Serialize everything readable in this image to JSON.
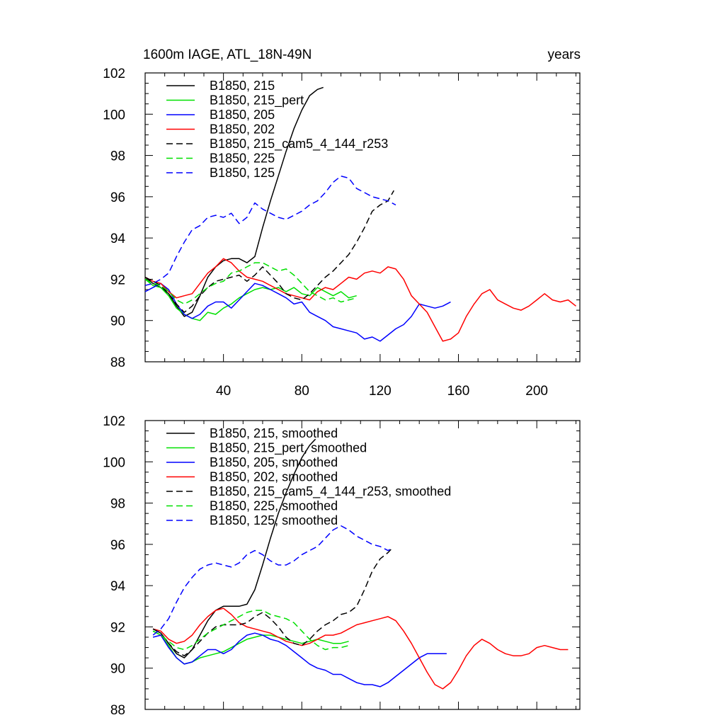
{
  "chart_data": [
    {
      "type": "line",
      "title_left": "1600m IAGE, ATL_18N-49N",
      "title_right": "years",
      "xlim": [
        0,
        222
      ],
      "ylim": [
        88,
        102
      ],
      "xticks": [
        40,
        80,
        120,
        160,
        200
      ],
      "yticks": [
        88,
        90,
        92,
        94,
        96,
        98,
        100,
        102
      ],
      "show_x_tick_labels": true,
      "legend_position": "top-left",
      "series": [
        {
          "name": "B1850, 215",
          "color": "#000000",
          "dash": "solid",
          "x": [
            0,
            4,
            8,
            12,
            16,
            20,
            24,
            28,
            32,
            36,
            40,
            44,
            48,
            52,
            56,
            60,
            64,
            68,
            72,
            76,
            80,
            84,
            88,
            91
          ],
          "y": [
            92.1,
            91.8,
            91.6,
            91.3,
            90.7,
            90.2,
            90.4,
            91.2,
            92.1,
            92.6,
            92.9,
            93.0,
            93.0,
            92.8,
            93.1,
            94.5,
            95.8,
            97.0,
            98.2,
            99.3,
            100.2,
            100.9,
            101.2,
            101.3
          ]
        },
        {
          "name": "B1850, 215_pert",
          "color": "#00e000",
          "dash": "solid",
          "x": [
            0,
            4,
            8,
            12,
            16,
            20,
            24,
            28,
            32,
            36,
            40,
            44,
            48,
            52,
            56,
            60,
            64,
            68,
            72,
            76,
            80,
            84,
            88,
            92,
            96,
            100,
            104,
            108
          ],
          "y": [
            92.0,
            91.7,
            91.6,
            91.2,
            90.6,
            90.3,
            90.1,
            90.0,
            90.4,
            90.3,
            90.6,
            90.8,
            91.1,
            91.3,
            91.5,
            91.6,
            91.5,
            91.6,
            91.4,
            91.6,
            91.3,
            91.2,
            91.6,
            91.4,
            91.2,
            91.4,
            91.1,
            91.2
          ]
        },
        {
          "name": "B1850, 205",
          "color": "#0000ff",
          "dash": "solid",
          "x": [
            0,
            4,
            8,
            12,
            16,
            20,
            24,
            28,
            32,
            36,
            40,
            44,
            48,
            52,
            56,
            60,
            64,
            68,
            72,
            76,
            80,
            84,
            88,
            92,
            96,
            100,
            104,
            108,
            112,
            116,
            120,
            124,
            128,
            132,
            136,
            140,
            144,
            148,
            152,
            156
          ],
          "y": [
            91.4,
            91.6,
            91.8,
            91.5,
            90.8,
            90.3,
            90.1,
            90.3,
            90.7,
            90.9,
            90.9,
            90.6,
            91.0,
            91.4,
            91.8,
            91.7,
            91.5,
            91.3,
            91.1,
            90.8,
            90.9,
            90.4,
            90.2,
            90.0,
            89.7,
            89.6,
            89.5,
            89.4,
            89.1,
            89.2,
            89.0,
            89.3,
            89.6,
            89.8,
            90.2,
            90.8,
            90.7,
            90.6,
            90.7,
            90.9
          ]
        },
        {
          "name": "B1850, 202",
          "color": "#ff0000",
          "dash": "solid",
          "x": [
            0,
            4,
            8,
            12,
            16,
            20,
            24,
            28,
            32,
            36,
            40,
            44,
            48,
            52,
            56,
            60,
            64,
            68,
            72,
            76,
            80,
            84,
            88,
            92,
            96,
            100,
            104,
            108,
            112,
            116,
            120,
            124,
            128,
            132,
            136,
            140,
            144,
            148,
            152,
            156,
            160,
            164,
            168,
            172,
            176,
            180,
            184,
            188,
            192,
            196,
            200,
            204,
            208,
            212,
            216,
            220
          ],
          "y": [
            92.1,
            91.9,
            91.8,
            91.4,
            91.1,
            91.2,
            91.3,
            91.8,
            92.3,
            92.6,
            93.0,
            92.8,
            92.4,
            92.1,
            92.0,
            91.9,
            91.7,
            91.5,
            91.3,
            91.2,
            91.1,
            91.0,
            91.4,
            91.6,
            91.5,
            91.8,
            92.1,
            92.0,
            92.3,
            92.4,
            92.3,
            92.6,
            92.5,
            92.0,
            91.2,
            90.8,
            90.4,
            89.7,
            89.0,
            89.1,
            89.4,
            90.2,
            90.8,
            91.3,
            91.5,
            91.0,
            90.8,
            90.6,
            90.5,
            90.7,
            91.0,
            91.3,
            91.0,
            90.9,
            91.0,
            90.7
          ]
        },
        {
          "name": "B1850, 215_cam5_4_144_r253",
          "color": "#000000",
          "dash": "dashed",
          "x": [
            0,
            4,
            8,
            12,
            16,
            20,
            24,
            28,
            32,
            36,
            40,
            44,
            48,
            52,
            56,
            60,
            64,
            68,
            72,
            76,
            80,
            84,
            88,
            92,
            96,
            100,
            104,
            108,
            112,
            116,
            120,
            124,
            127
          ],
          "y": [
            92.1,
            91.9,
            91.7,
            91.3,
            90.8,
            90.4,
            90.7,
            91.2,
            91.6,
            91.9,
            92.0,
            92.1,
            92.2,
            91.9,
            92.2,
            92.6,
            92.2,
            91.8,
            91.3,
            91.1,
            91.0,
            91.3,
            91.7,
            92.1,
            92.4,
            92.8,
            93.2,
            93.8,
            94.5,
            95.3,
            95.6,
            95.8,
            96.3
          ]
        },
        {
          "name": "B1850, 225",
          "color": "#00e000",
          "dash": "dashed",
          "x": [
            0,
            4,
            8,
            12,
            16,
            20,
            24,
            28,
            32,
            36,
            40,
            44,
            48,
            52,
            56,
            60,
            64,
            68,
            72,
            76,
            80,
            84,
            88,
            92,
            96,
            100,
            104,
            108
          ],
          "y": [
            92.0,
            91.8,
            91.7,
            91.4,
            91.0,
            90.8,
            91.0,
            91.3,
            91.6,
            91.8,
            91.9,
            92.3,
            92.4,
            92.6,
            92.8,
            92.8,
            92.6,
            92.4,
            92.5,
            92.2,
            91.8,
            91.4,
            91.2,
            91.0,
            91.1,
            90.9,
            91.0,
            91.1
          ]
        },
        {
          "name": "B1850, 125",
          "color": "#0000ff",
          "dash": "dashed",
          "x": [
            0,
            4,
            8,
            12,
            16,
            20,
            24,
            28,
            32,
            36,
            40,
            44,
            48,
            52,
            56,
            60,
            64,
            68,
            72,
            76,
            80,
            84,
            88,
            92,
            96,
            100,
            104,
            108,
            112,
            116,
            120,
            124,
            128
          ],
          "y": [
            91.7,
            91.8,
            92.0,
            92.3,
            93.1,
            93.8,
            94.4,
            94.6,
            95.0,
            95.1,
            95.0,
            95.2,
            94.7,
            95.0,
            95.7,
            95.4,
            95.2,
            95.0,
            94.9,
            95.1,
            95.3,
            95.6,
            95.8,
            96.2,
            96.7,
            97.0,
            96.9,
            96.4,
            96.2,
            96.0,
            95.9,
            95.8,
            95.6
          ]
        }
      ]
    },
    {
      "type": "line",
      "xlim": [
        0,
        222
      ],
      "ylim": [
        88,
        102
      ],
      "xticks": [
        40,
        80,
        120,
        160,
        200
      ],
      "yticks": [
        88,
        90,
        92,
        94,
        96,
        98,
        100,
        102
      ],
      "show_x_tick_labels": false,
      "legend_position": "top-left",
      "series": [
        {
          "name": "B1850, 215, smoothed",
          "color": "#000000",
          "dash": "solid",
          "x": [
            4,
            8,
            12,
            16,
            20,
            24,
            28,
            32,
            36,
            40,
            44,
            48,
            52,
            56,
            60,
            64,
            68,
            72,
            76,
            80,
            84,
            87
          ],
          "y": [
            91.9,
            91.7,
            91.2,
            90.7,
            90.5,
            90.9,
            91.6,
            92.3,
            92.8,
            93.0,
            93.0,
            93.0,
            93.1,
            93.8,
            95.0,
            96.3,
            97.5,
            98.5,
            99.4,
            100.2,
            100.8,
            101.1
          ]
        },
        {
          "name": "B1850, 215_pert, smoothed",
          "color": "#00e000",
          "dash": "solid",
          "x": [
            4,
            8,
            12,
            16,
            20,
            24,
            28,
            32,
            36,
            40,
            44,
            48,
            52,
            56,
            60,
            64,
            68,
            72,
            76,
            80,
            84,
            88,
            92,
            96,
            100,
            104
          ],
          "y": [
            91.8,
            91.6,
            91.1,
            90.5,
            90.2,
            90.3,
            90.5,
            90.6,
            90.7,
            90.8,
            91.0,
            91.2,
            91.4,
            91.5,
            91.6,
            91.6,
            91.5,
            91.4,
            91.3,
            91.2,
            91.3,
            91.4,
            91.3,
            91.2,
            91.2,
            91.3
          ]
        },
        {
          "name": "B1850, 205, smoothed",
          "color": "#0000ff",
          "dash": "solid",
          "x": [
            4,
            8,
            12,
            16,
            20,
            24,
            28,
            32,
            36,
            40,
            44,
            48,
            52,
            56,
            60,
            64,
            68,
            72,
            76,
            80,
            84,
            88,
            92,
            96,
            100,
            104,
            108,
            112,
            116,
            120,
            124,
            128,
            132,
            136,
            140,
            144,
            148,
            152,
            154
          ],
          "y": [
            91.5,
            91.6,
            91.0,
            90.5,
            90.2,
            90.3,
            90.6,
            90.9,
            90.9,
            90.7,
            90.9,
            91.3,
            91.6,
            91.7,
            91.6,
            91.4,
            91.3,
            91.1,
            90.8,
            90.5,
            90.2,
            90.0,
            89.9,
            89.7,
            89.7,
            89.5,
            89.3,
            89.2,
            89.2,
            89.1,
            89.3,
            89.6,
            89.9,
            90.2,
            90.5,
            90.7,
            90.7,
            90.7,
            90.7
          ]
        },
        {
          "name": "B1850, 202, smoothed",
          "color": "#ff0000",
          "dash": "solid",
          "x": [
            4,
            8,
            12,
            16,
            20,
            24,
            28,
            32,
            36,
            40,
            44,
            48,
            52,
            56,
            60,
            64,
            68,
            72,
            76,
            80,
            84,
            88,
            92,
            96,
            100,
            104,
            108,
            112,
            116,
            120,
            124,
            128,
            132,
            136,
            140,
            144,
            148,
            152,
            156,
            160,
            164,
            168,
            172,
            176,
            180,
            184,
            188,
            192,
            196,
            200,
            204,
            208,
            212,
            216
          ],
          "y": [
            91.9,
            91.8,
            91.4,
            91.2,
            91.3,
            91.6,
            92.1,
            92.5,
            92.8,
            92.9,
            92.6,
            92.2,
            92.0,
            91.9,
            91.8,
            91.7,
            91.5,
            91.3,
            91.2,
            91.1,
            91.2,
            91.4,
            91.6,
            91.6,
            91.7,
            91.9,
            92.1,
            92.2,
            92.3,
            92.4,
            92.5,
            92.3,
            91.8,
            91.2,
            90.5,
            89.8,
            89.2,
            89.0,
            89.3,
            89.9,
            90.6,
            91.1,
            91.4,
            91.2,
            90.9,
            90.7,
            90.6,
            90.6,
            90.7,
            91.0,
            91.1,
            91.0,
            90.9,
            90.9
          ]
        },
        {
          "name": "B1850, 215_cam5_4_144_r253, smoothed",
          "color": "#000000",
          "dash": "dashed",
          "x": [
            4,
            8,
            12,
            16,
            20,
            24,
            28,
            32,
            36,
            40,
            44,
            48,
            52,
            56,
            60,
            64,
            68,
            72,
            76,
            80,
            84,
            88,
            92,
            96,
            100,
            104,
            108,
            112,
            116,
            120,
            124,
            126
          ],
          "y": [
            91.9,
            91.7,
            91.2,
            90.8,
            90.6,
            90.9,
            91.3,
            91.7,
            92.0,
            92.1,
            92.1,
            92.1,
            92.2,
            92.5,
            92.7,
            92.4,
            92.0,
            91.5,
            91.2,
            91.1,
            91.4,
            91.8,
            92.1,
            92.3,
            92.6,
            92.7,
            93.0,
            93.8,
            94.7,
            95.3,
            95.6,
            95.8
          ]
        },
        {
          "name": "B1850, 225, smoothed",
          "color": "#00e000",
          "dash": "dashed",
          "x": [
            4,
            8,
            12,
            16,
            20,
            24,
            28,
            32,
            36,
            40,
            44,
            48,
            52,
            56,
            60,
            64,
            68,
            72,
            76,
            80,
            84,
            88,
            92,
            96,
            100,
            104
          ],
          "y": [
            91.8,
            91.6,
            91.3,
            91.0,
            90.9,
            91.1,
            91.4,
            91.7,
            91.9,
            92.1,
            92.3,
            92.5,
            92.7,
            92.8,
            92.8,
            92.6,
            92.5,
            92.4,
            92.2,
            91.8,
            91.4,
            91.1,
            90.9,
            91.0,
            91.0,
            91.1
          ]
        },
        {
          "name": "B1850, 125, smoothed",
          "color": "#0000ff",
          "dash": "dashed",
          "x": [
            4,
            8,
            12,
            16,
            20,
            24,
            28,
            32,
            36,
            40,
            44,
            48,
            52,
            56,
            60,
            64,
            68,
            72,
            76,
            80,
            84,
            88,
            92,
            96,
            100,
            104,
            108,
            112,
            116,
            120,
            124,
            126
          ],
          "y": [
            91.6,
            91.9,
            92.4,
            93.2,
            93.9,
            94.4,
            94.8,
            95.0,
            95.1,
            95.0,
            94.9,
            95.1,
            95.5,
            95.7,
            95.5,
            95.2,
            95.0,
            95.0,
            95.2,
            95.5,
            95.7,
            95.9,
            96.3,
            96.7,
            96.9,
            96.7,
            96.4,
            96.2,
            96.0,
            95.9,
            95.7,
            95.8
          ]
        }
      ]
    }
  ]
}
